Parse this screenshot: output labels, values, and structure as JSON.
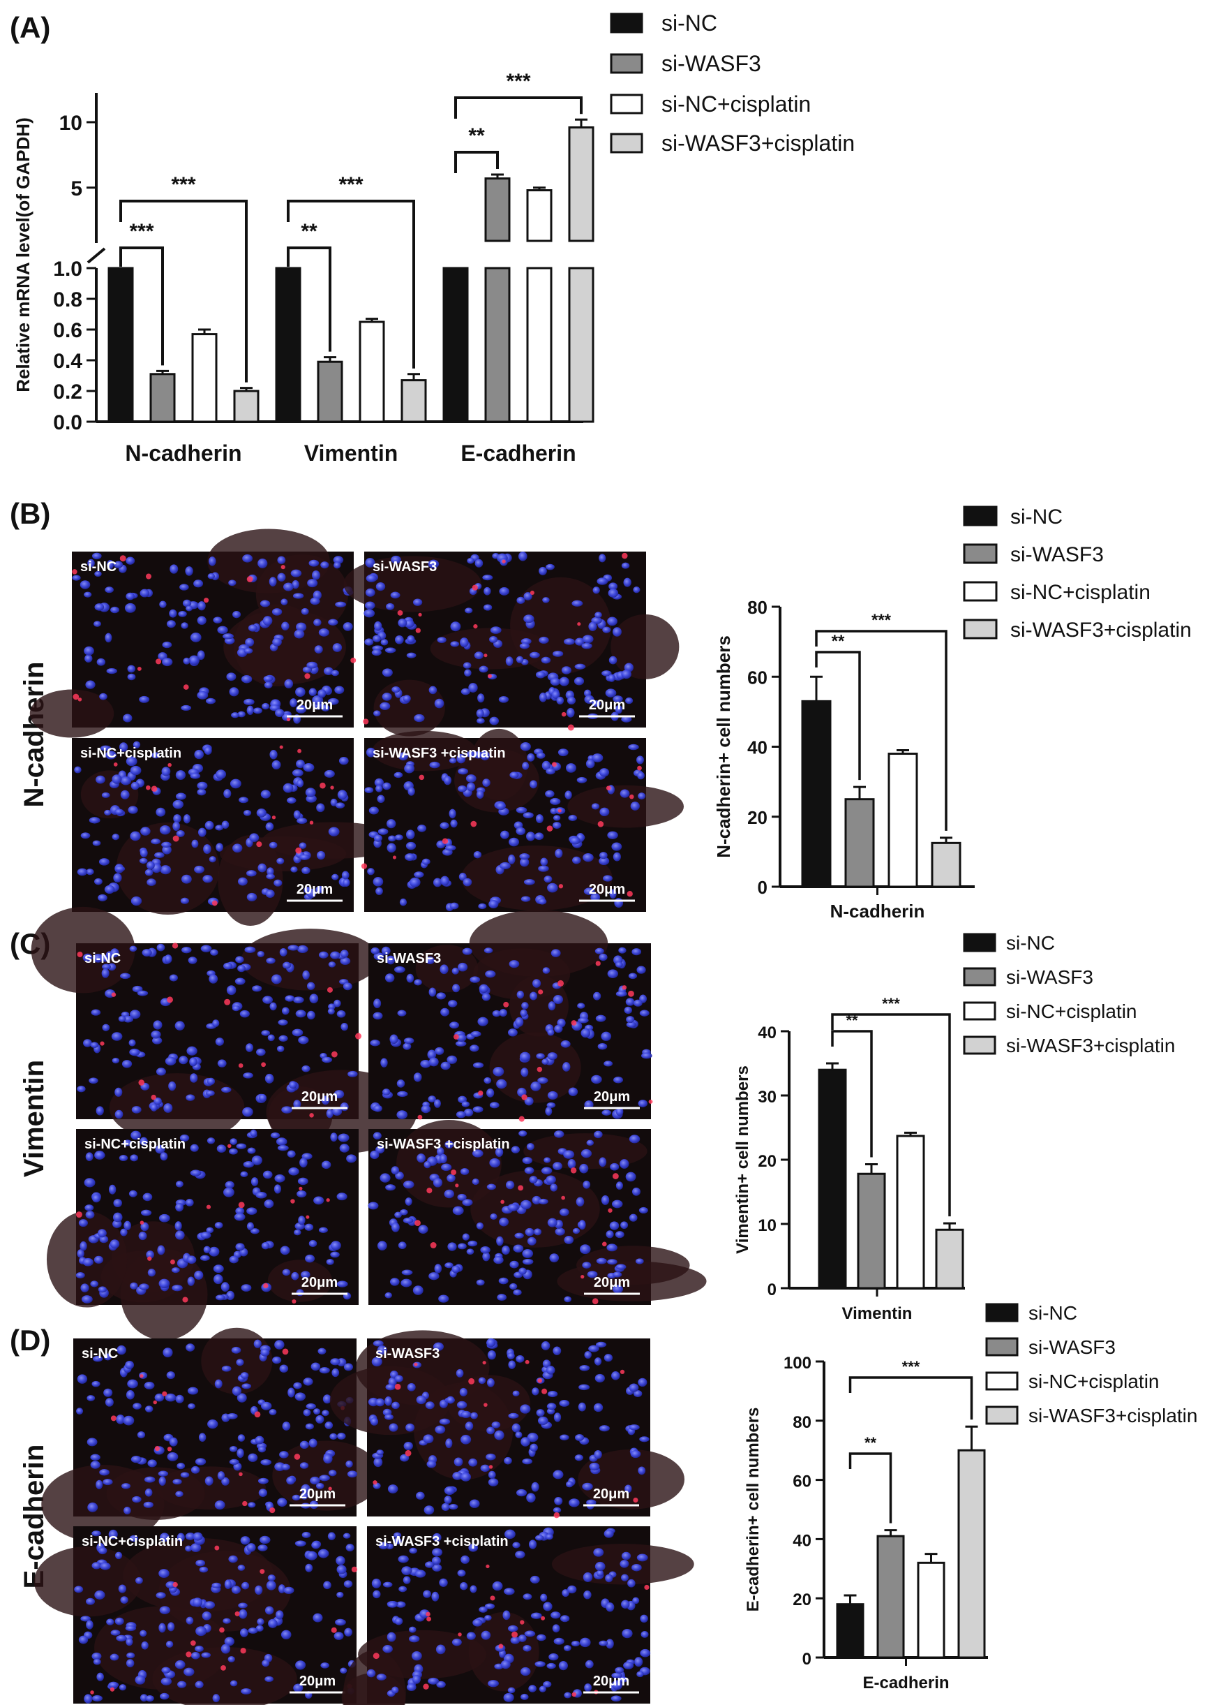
{
  "panel_labels": [
    "(A)",
    "(B)",
    "(C)",
    "(D)"
  ],
  "legend": {
    "items": [
      {
        "label": "si-NC",
        "color": "#111111"
      },
      {
        "label": "si-WASF3",
        "color": "#8a8a8a"
      },
      {
        "label": "si-NC+cisplatin",
        "color": "#ffffff"
      },
      {
        "label": "si-WASF3+cisplatin",
        "color": "#d2d2d2"
      }
    ]
  },
  "row_labels": [
    "N-cadherin",
    "Vimentin",
    "E-cadherin"
  ],
  "micrographs": {
    "labels": [
      "si-NC",
      "si-WASF3",
      "si-NC+cisplatin",
      "si-WASF3 +cisplatin"
    ],
    "scale_bar": "20μm"
  },
  "chart_data": [
    {
      "type": "bar",
      "panel": "(A)",
      "ylabel": "Relative  mRNA level(of GAPDH)",
      "categories": [
        "N-cadherin",
        "Vimentin",
        "E-cadherin"
      ],
      "series": [
        {
          "name": "si-NC",
          "values": [
            1.0,
            1.0,
            1.0
          ]
        },
        {
          "name": "si-WASF3",
          "values": [
            0.31,
            0.39,
            5.7
          ]
        },
        {
          "name": "si-NC+cisplatin",
          "values": [
            0.57,
            0.65,
            4.8
          ]
        },
        {
          "name": "si-WASF3+cisplatin",
          "values": [
            0.2,
            0.27,
            9.6
          ]
        }
      ],
      "errors": [
        [
          0,
          0,
          0
        ],
        [
          0.02,
          0.03,
          0.3
        ],
        [
          0.03,
          0.02,
          0.2
        ],
        [
          0.02,
          0.04,
          0.6
        ]
      ],
      "y_axis": "broken",
      "ylim_lower": [
        0,
        1.0
      ],
      "ylim_upper": [
        2,
        10
      ],
      "yticks_lower": [
        "0.0",
        "0.2",
        "0.4",
        "0.6",
        "0.8",
        "1.0"
      ],
      "yticks_upper": [
        "5",
        "10"
      ],
      "significance": [
        {
          "category": "N-cadherin",
          "compare": "si-WASF3",
          "label": "***"
        },
        {
          "category": "N-cadherin",
          "compare": "si-WASF3+cisplatin",
          "label": "***"
        },
        {
          "category": "Vimentin",
          "compare": "si-WASF3",
          "label": "**"
        },
        {
          "category": "Vimentin",
          "compare": "si-WASF3+cisplatin",
          "label": "***"
        },
        {
          "category": "E-cadherin",
          "compare": "si-WASF3",
          "label": "**"
        },
        {
          "category": "E-cadherin",
          "compare": "si-WASF3+cisplatin",
          "label": "***"
        }
      ]
    },
    {
      "type": "bar",
      "panel": "(B)",
      "ylabel": "N-cadherin+ cell numbers",
      "xlabel": "N-cadherin",
      "ylim": [
        0,
        80
      ],
      "yticks": [
        "0",
        "20",
        "40",
        "60",
        "80"
      ],
      "series": [
        {
          "name": "si-NC",
          "values": [
            53
          ]
        },
        {
          "name": "si-WASF3",
          "values": [
            25
          ]
        },
        {
          "name": "si-NC+cisplatin",
          "values": [
            38
          ]
        },
        {
          "name": "si-WASF3+cisplatin",
          "values": [
            12.5
          ]
        }
      ],
      "errors": [
        7,
        3.5,
        1,
        1.5
      ],
      "significance": [
        {
          "compare": "si-WASF3",
          "label": "**"
        },
        {
          "compare": "si-WASF3+cisplatin",
          "label": "***"
        }
      ]
    },
    {
      "type": "bar",
      "panel": "(C)",
      "ylabel": "Vimentin+ cell numbers",
      "xlabel": "Vimentin",
      "ylim": [
        0,
        40
      ],
      "yticks": [
        "0",
        "10",
        "20",
        "30",
        "40"
      ],
      "series": [
        {
          "name": "si-NC",
          "values": [
            34
          ]
        },
        {
          "name": "si-WASF3",
          "values": [
            17.8
          ]
        },
        {
          "name": "si-NC+cisplatin",
          "values": [
            23.7
          ]
        },
        {
          "name": "si-WASF3+cisplatin",
          "values": [
            9.1
          ]
        }
      ],
      "errors": [
        1,
        1.5,
        0.5,
        1
      ],
      "significance": [
        {
          "compare": "si-WASF3",
          "label": "**"
        },
        {
          "compare": "si-WASF3+cisplatin",
          "label": "***"
        }
      ]
    },
    {
      "type": "bar",
      "panel": "(D)",
      "ylabel": "E-cadherin+ cell numbers",
      "xlabel": "E-cadherin",
      "ylim": [
        0,
        100
      ],
      "yticks": [
        "0",
        "20",
        "40",
        "60",
        "80",
        "100"
      ],
      "series": [
        {
          "name": "si-NC",
          "values": [
            18
          ]
        },
        {
          "name": "si-WASF3",
          "values": [
            41
          ]
        },
        {
          "name": "si-NC+cisplatin",
          "values": [
            32
          ]
        },
        {
          "name": "si-WASF3+cisplatin",
          "values": [
            70
          ]
        }
      ],
      "errors": [
        3,
        2,
        3,
        8
      ],
      "significance": [
        {
          "compare": "si-WASF3",
          "label": "**"
        },
        {
          "compare": "si-WASF3+cisplatin",
          "label": "***"
        }
      ]
    }
  ]
}
